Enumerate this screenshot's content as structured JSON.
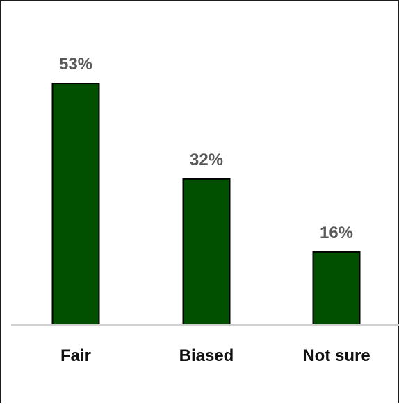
{
  "chart_data": {
    "type": "bar",
    "categories": [
      "Fair",
      "Biased",
      "Not sure"
    ],
    "values": [
      53,
      32,
      16
    ],
    "data_labels": [
      "53%",
      "32%",
      "16%"
    ],
    "title": "",
    "xlabel": "",
    "ylabel": "",
    "ylim": [
      0,
      55
    ],
    "grid": false,
    "legend": "none",
    "colors": {
      "bar_fill": "#005000",
      "bar_stroke": "#000000",
      "axis": "#d0d0d0",
      "value_label": "#595959",
      "category_label": "#111111"
    }
  }
}
